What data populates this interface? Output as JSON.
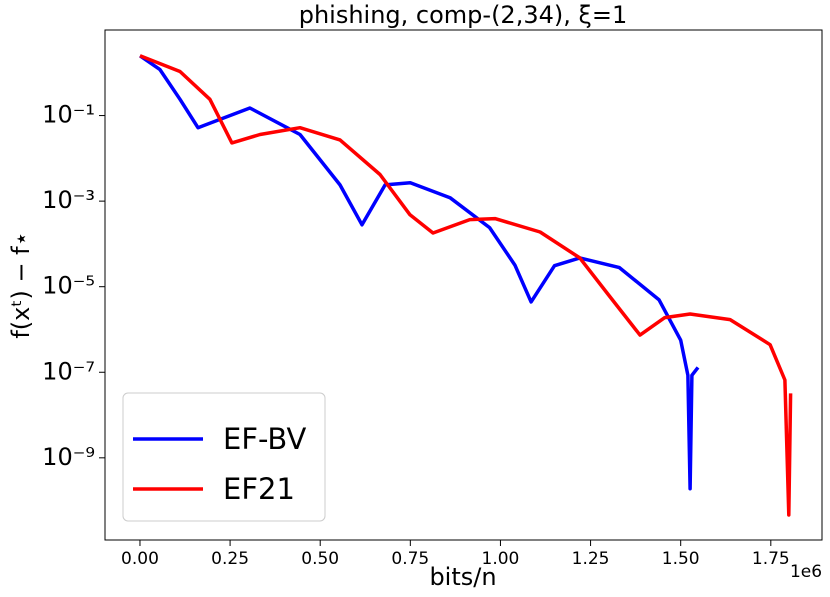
{
  "chart_data": {
    "type": "line",
    "title": "phishing, comp-(2,34), ξ=1",
    "xlabel": "bits/n",
    "ylabel": "f(xᵗ) − f⋆",
    "x_offset_label": "1e6",
    "yscale": "log",
    "legend_loc": "lower left",
    "xlim": [
      -97000,
      1892000
    ],
    "ylim": [
      1.2e-11,
      10
    ],
    "xticks": [
      {
        "value": 0,
        "label": "0.00"
      },
      {
        "value": 250000,
        "label": "0.25"
      },
      {
        "value": 500000,
        "label": "0.50"
      },
      {
        "value": 750000,
        "label": "0.75"
      },
      {
        "value": 1000000,
        "label": "1.00"
      },
      {
        "value": 1250000,
        "label": "1.25"
      },
      {
        "value": 1500000,
        "label": "1.50"
      },
      {
        "value": 1750000,
        "label": "1.75"
      }
    ],
    "yticks": [
      {
        "value": 1e-09,
        "label": "10⁻⁹"
      },
      {
        "value": 1e-07,
        "label": "10⁻⁷"
      },
      {
        "value": 1e-05,
        "label": "10⁻⁵"
      },
      {
        "value": 0.001,
        "label": "10⁻³"
      },
      {
        "value": 0.1,
        "label": "10⁻¹"
      }
    ],
    "series": [
      {
        "name": "EF-BV",
        "color": "#0000ff",
        "x": [
          0,
          55000,
          111000,
          161000,
          305000,
          444000,
          555000,
          616000,
          680000,
          750000,
          860000,
          970000,
          1040000,
          1085000,
          1150000,
          1220000,
          1330000,
          1440000,
          1500000,
          1520000,
          1526000,
          1531000,
          1548000
        ],
        "values": [
          2.5,
          1.2,
          0.24,
          0.052,
          0.15,
          0.036,
          0.0024,
          0.00028,
          0.0024,
          0.0027,
          0.0012,
          0.00024,
          3.2e-05,
          4.4e-06,
          3.1e-05,
          4.7e-05,
          2.8e-05,
          4.9e-06,
          5.6e-07,
          8.5e-08,
          1.9e-10,
          8.5e-08,
          1.3e-07
        ]
      },
      {
        "name": "EF21",
        "color": "#ff0000",
        "x": [
          0,
          111000,
          194000,
          255000,
          333000,
          444000,
          555000,
          666000,
          749000,
          813000,
          915000,
          985000,
          1110000,
          1220000,
          1300000,
          1387000,
          1456000,
          1526000,
          1637000,
          1748000,
          1789000,
          1800000,
          1805000
        ],
        "values": [
          2.5,
          1.07,
          0.24,
          0.023,
          0.036,
          0.052,
          0.027,
          0.0042,
          0.00048,
          0.00018,
          0.00037,
          0.00039,
          0.00019,
          4.7e-05,
          6.4e-06,
          7.4e-07,
          1.9e-06,
          2.3e-06,
          1.7e-06,
          4.4e-07,
          6.6e-08,
          4.6e-11,
          3.2e-08
        ]
      }
    ]
  }
}
